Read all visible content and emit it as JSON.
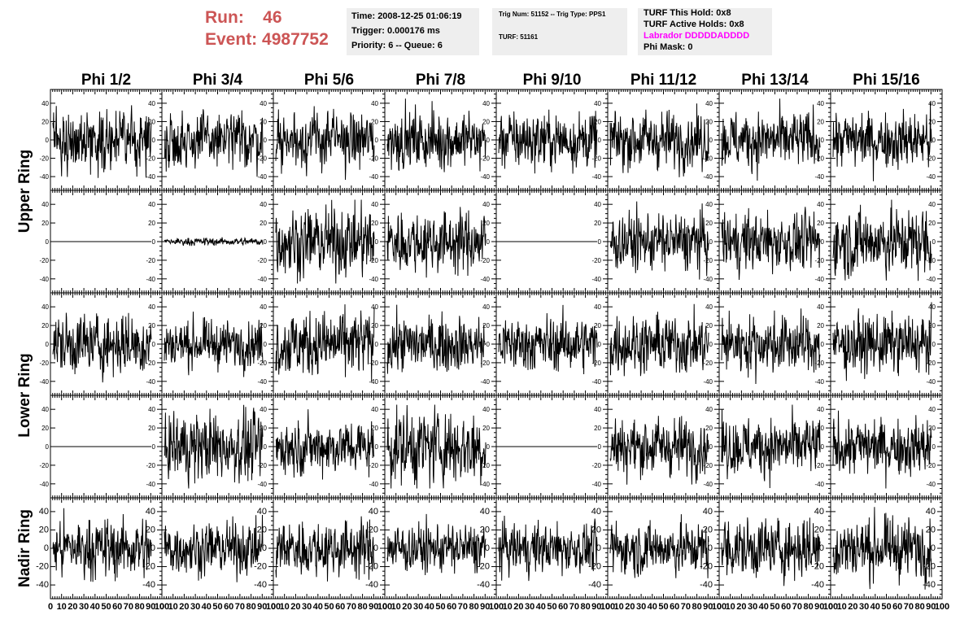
{
  "header": {
    "run_label": "Run:",
    "run_value": "46",
    "event_label": "Event:",
    "event_value": "4987752"
  },
  "info_time": {
    "time": "Time: 2008-12-25 01:06:19",
    "trigger": "Trigger: 0.000176 ms",
    "priority": "Priority: 6 -- Queue: 6"
  },
  "info_trig": {
    "trig": "Trig Num: 51152 -- Trig Type: PPS1",
    "turf": "TURF: 51161"
  },
  "info_turf": {
    "this_hold": "TURF This Hold: 0x8",
    "active_holds": "TURF Active Holds: 0x8",
    "labrador": "Labrador DDDDDADDDD",
    "phi_mask": "Phi Mask: 0"
  },
  "colors": {
    "run_text": "#cc5555",
    "info_bg": "#eeeeee",
    "labrador": "#ff00ff",
    "trace": "#000000"
  },
  "chart_data": {
    "type": "line",
    "columns": [
      "Phi 1/2",
      "Phi 3/4",
      "Phi 5/6",
      "Phi 7/8",
      "Phi 9/10",
      "Phi 11/12",
      "Phi 13/14",
      "Phi 15/16"
    ],
    "row_labels": [
      {
        "text": "Upper Ring",
        "rows": [
          0,
          1
        ]
      },
      {
        "text": "Lower Ring",
        "rows": [
          2,
          3
        ]
      },
      {
        "text": "Nadir Ring",
        "rows": [
          4,
          4
        ]
      }
    ],
    "ylim": [
      -55,
      55
    ],
    "xlim": [
      0,
      100
    ],
    "yticks": [
      40,
      20,
      0,
      -20,
      -40
    ],
    "x_tick_labels": [
      "0",
      "10",
      "20",
      "30",
      "40",
      "50",
      "60",
      "70",
      "80",
      "90",
      "100"
    ],
    "panel_amplitude": [
      [
        15,
        15,
        15,
        15,
        15,
        15,
        15,
        15
      ],
      [
        0,
        2,
        18,
        16,
        0,
        15,
        15,
        18
      ],
      [
        16,
        12,
        17,
        14,
        14,
        15,
        15,
        15
      ],
      [
        0,
        18,
        14,
        20,
        0,
        15,
        15,
        15
      ],
      [
        16,
        14,
        15,
        13,
        13,
        14,
        16,
        16
      ]
    ],
    "samples_per_trace": 260
  }
}
